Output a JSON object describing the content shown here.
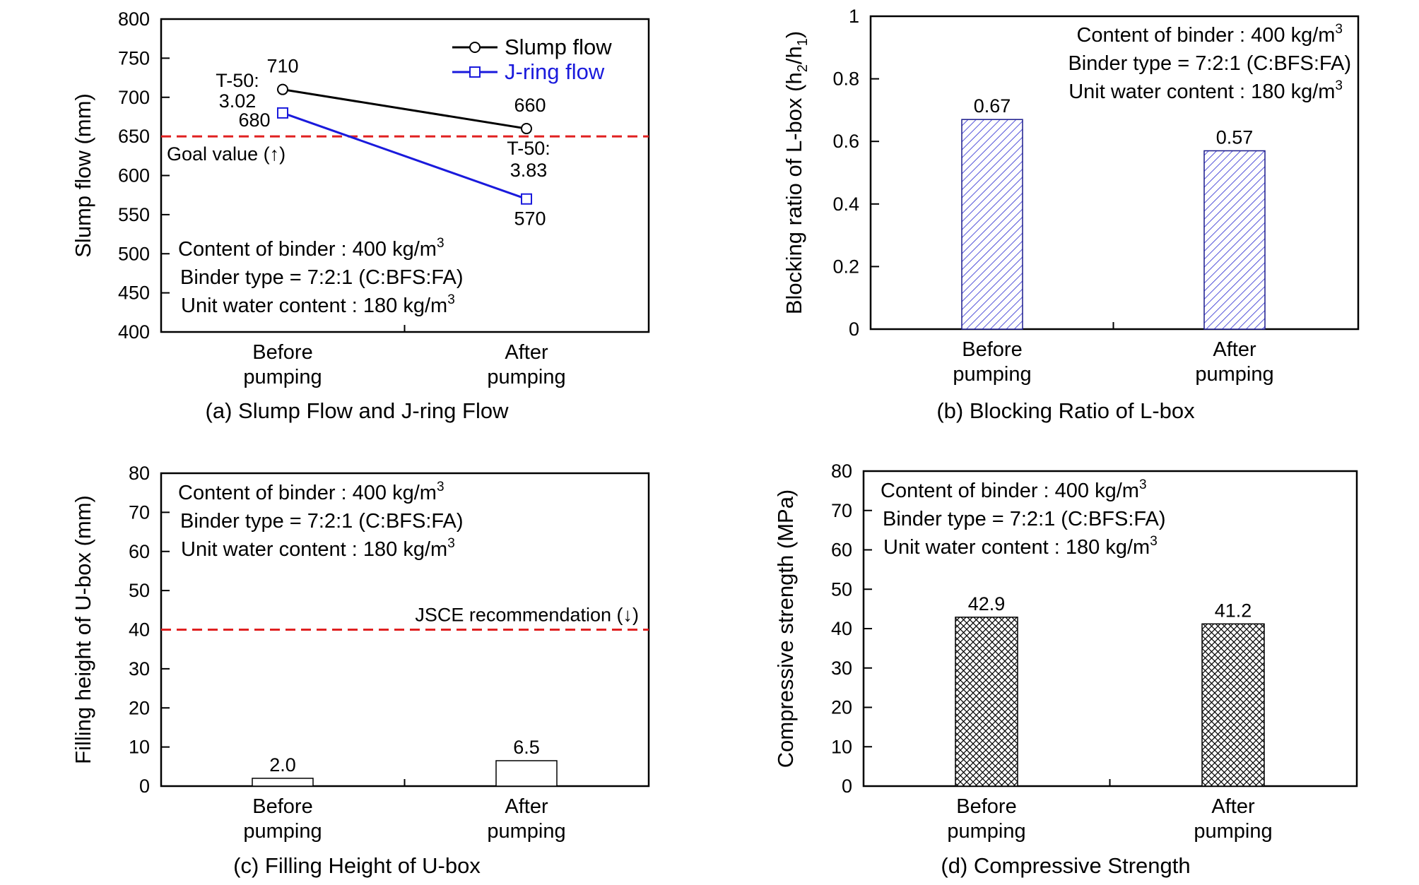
{
  "chart_data": [
    {
      "id": "a",
      "type": "line",
      "caption": "(a) Slump Flow and J-ring Flow",
      "ylabel": "Slump flow (mm)",
      "ylim": [
        400,
        800
      ],
      "yticks": [
        400,
        450,
        500,
        550,
        600,
        650,
        700,
        750,
        800
      ],
      "categories": [
        "Before\npumping",
        "After\npumping"
      ],
      "series": [
        {
          "name": "Slump flow",
          "color": "#000000",
          "marker": "circle",
          "values": [
            710,
            660
          ],
          "labels": [
            "710",
            "660"
          ]
        },
        {
          "name": "J-ring flow",
          "color": "#1a1adc",
          "marker": "square",
          "values": [
            680,
            570
          ],
          "labels": [
            "680",
            "570"
          ]
        }
      ],
      "annotations": [
        {
          "text": "T-50:\n3.02",
          "near": "Before\npumping"
        },
        {
          "text": "T-50:\n3.83",
          "near": "After\npumping"
        }
      ],
      "reference_line": {
        "value": 650,
        "label": "Goal value (↑)",
        "color": "#e02020"
      },
      "notes": [
        "Content of binder : 400 kg/m",
        "Binder type = 7:2:1 (C:BFS:FA)",
        "Unit water content : 180 kg/m"
      ],
      "legend_position": "top-right"
    },
    {
      "id": "b",
      "type": "bar",
      "caption": "(b) Blocking Ratio of L-box",
      "ylabel": "Blocking ratio of L-box (h2/h1)",
      "ylim": [
        0,
        1
      ],
      "yticks": [
        "0",
        "0.2",
        "0.4",
        "0.6",
        "0.8",
        "1"
      ],
      "categories": [
        "Before\npumping",
        "After\npumping"
      ],
      "values": [
        0.67,
        0.57
      ],
      "value_labels": [
        "0.67",
        "0.57"
      ],
      "fill": "hatch-diagonal-blue",
      "notes": [
        "Content of binder : 400 kg/m",
        "Binder type = 7:2:1 (C:BFS:FA)",
        "Unit water content : 180 kg/m"
      ]
    },
    {
      "id": "c",
      "type": "bar",
      "caption": "(c) Filling Height of U-box",
      "ylabel": "Filling height of U-box (mm)",
      "ylim": [
        0,
        80
      ],
      "yticks": [
        0,
        10,
        20,
        30,
        40,
        50,
        60,
        70,
        80
      ],
      "categories": [
        "Before\npumping",
        "After\npumping"
      ],
      "values": [
        2.0,
        6.5
      ],
      "value_labels": [
        "2.0",
        "6.5"
      ],
      "fill": "white",
      "reference_line": {
        "value": 40,
        "label": "JSCE recommendation  (↓)",
        "color": "#e02020"
      },
      "notes": [
        "Content of binder : 400 kg/m",
        "Binder type = 7:2:1 (C:BFS:FA)",
        "Unit water content : 180 kg/m"
      ]
    },
    {
      "id": "d",
      "type": "bar",
      "caption": "(d) Compressive Strength",
      "ylabel": "Compressive strength (MPa)",
      "ylim": [
        0,
        80
      ],
      "yticks": [
        0,
        10,
        20,
        30,
        40,
        50,
        60,
        70,
        80
      ],
      "categories": [
        "Before\npumping",
        "After\npumping"
      ],
      "values": [
        42.9,
        41.2
      ],
      "value_labels": [
        "42.9",
        "41.2"
      ],
      "fill": "hatch-cross-black",
      "notes": [
        "Content of binder : 400 kg/m",
        "Binder type = 7:2:1 (C:BFS:FA)",
        "Unit water content : 180 kg/m"
      ]
    }
  ],
  "superscript": "3",
  "sub_h2": "2",
  "sub_h1": "1"
}
